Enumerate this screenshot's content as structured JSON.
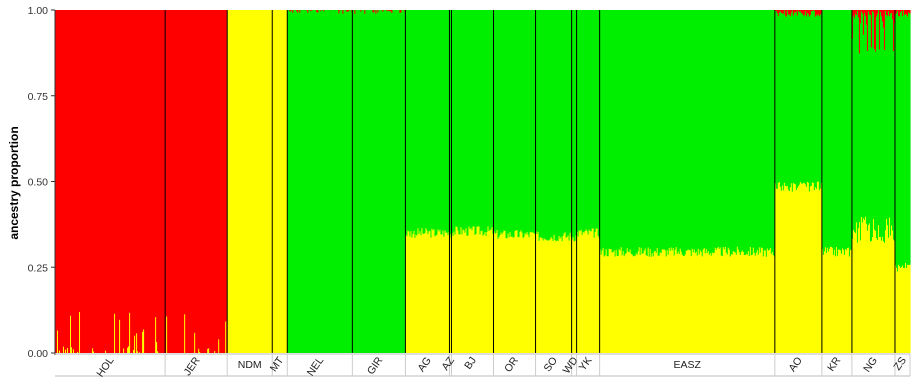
{
  "chart_data": {
    "type": "stacked-bar",
    "title": "",
    "ylabel": "ancestry proportion",
    "xlabel": "",
    "ylim": [
      0,
      1
    ],
    "yticks": [
      0.0,
      0.25,
      0.5,
      0.75,
      1.0
    ],
    "ytick_labels": [
      "0.00",
      "0.25",
      "0.50",
      "0.75",
      "1.00"
    ],
    "colors": {
      "red": "#ff0000",
      "yellow": "#ffff00",
      "green": "#00ee00"
    },
    "component_order": [
      "yellow",
      "green",
      "red"
    ],
    "groups": [
      {
        "label": "HOL",
        "n": 110,
        "yellow": 0.015,
        "green": 0.0,
        "red": 0.985,
        "spiky_yellow": true
      },
      {
        "label": "JER",
        "n": 62,
        "yellow": 0.02,
        "green": 0.0,
        "red": 0.98,
        "spiky_yellow": true
      },
      {
        "label": "NDM",
        "n": 45,
        "yellow": 1.0,
        "green": 0.0,
        "red": 0.0
      },
      {
        "label": "MT",
        "n": 15,
        "yellow": 1.0,
        "green": 0.0,
        "red": 0.0
      },
      {
        "label": "NEL",
        "n": 65,
        "yellow": 0.0,
        "green": 0.995,
        "red": 0.005
      },
      {
        "label": "GIR",
        "n": 53,
        "yellow": 0.0,
        "green": 0.995,
        "red": 0.005
      },
      {
        "label": "AG",
        "n": 44,
        "yellow": 0.35,
        "green": 0.65,
        "red": 0.0
      },
      {
        "label": "AZ",
        "n": 2,
        "yellow": 0.35,
        "green": 0.65,
        "red": 0.0
      },
      {
        "label": "BJ",
        "n": 42,
        "yellow": 0.355,
        "green": 0.645,
        "red": 0.0
      },
      {
        "label": "OR",
        "n": 42,
        "yellow": 0.345,
        "green": 0.655,
        "red": 0.0
      },
      {
        "label": "SO",
        "n": 36,
        "yellow": 0.34,
        "green": 0.66,
        "red": 0.0
      },
      {
        "label": "WD",
        "n": 5,
        "yellow": 0.34,
        "green": 0.66,
        "red": 0.0
      },
      {
        "label": "YK",
        "n": 23,
        "yellow": 0.35,
        "green": 0.65,
        "red": 0.0
      },
      {
        "label": "EASZ",
        "n": 175,
        "yellow": 0.295,
        "green": 0.705,
        "red": 0.0
      },
      {
        "label": "AO",
        "n": 47,
        "yellow": 0.485,
        "green": 0.51,
        "red": 0.005
      },
      {
        "label": "KR",
        "n": 30,
        "yellow": 0.295,
        "green": 0.705,
        "red": 0.0
      },
      {
        "label": "NG",
        "n": 43,
        "yellow": 0.36,
        "green": 0.6,
        "red": 0.04,
        "spiky_red": true
      },
      {
        "label": "ZS",
        "n": 15,
        "yellow": 0.25,
        "green": 0.73,
        "red": 0.02
      }
    ]
  }
}
